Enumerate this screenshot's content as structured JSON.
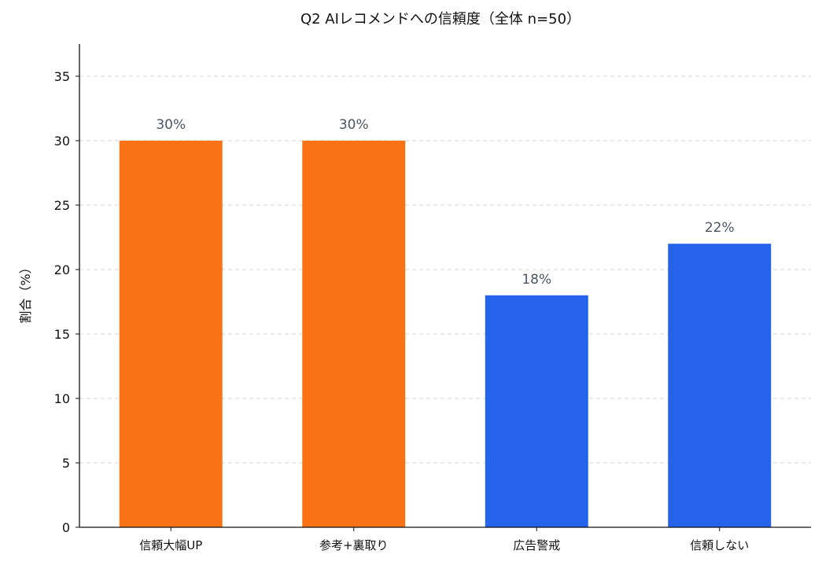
{
  "chart_data": {
    "type": "bar",
    "title": "Q2 AIレコメンドへの信頼度（全体 n=50）",
    "xlabel": "",
    "ylabel": "割合（%）",
    "categories": [
      "信頼大幅UP",
      "参考+裏取り",
      "広告警戒",
      "信頼しない"
    ],
    "values": [
      30,
      30,
      18,
      22
    ],
    "data_labels": [
      "30%",
      "30%",
      "18%",
      "22%"
    ],
    "bar_colors": [
      "#F97316",
      "#F97316",
      "#2563EB",
      "#2563EB"
    ],
    "ylim": [
      0,
      37.5
    ],
    "yticks": [
      0,
      5,
      10,
      15,
      20,
      25,
      30,
      35
    ],
    "grid": "y, dashed",
    "legend": "none"
  }
}
